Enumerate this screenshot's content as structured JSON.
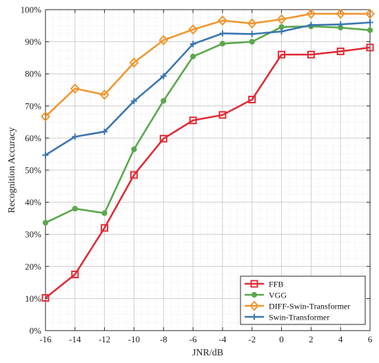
{
  "chart_data": {
    "type": "line",
    "xlabel": "JNR/dB",
    "ylabel": "Recognition Accuracy",
    "x": [
      -16,
      -14,
      -12,
      -10,
      -8,
      -6,
      -4,
      -2,
      0,
      2,
      4,
      6
    ],
    "x_tick_labels": [
      "-16",
      "-14",
      "-12",
      "-10",
      "-8",
      "-6",
      "-4",
      "-2",
      "0",
      "2",
      "4",
      "6"
    ],
    "xlim": [
      -16,
      6
    ],
    "ylim": [
      0,
      100
    ],
    "y_ticks": [
      0,
      10,
      20,
      30,
      40,
      50,
      60,
      70,
      80,
      90,
      100
    ],
    "y_tick_labels": [
      "0%",
      "10%",
      "20%",
      "30%",
      "40%",
      "50%",
      "60%",
      "70%",
      "80%",
      "90%",
      "100%"
    ],
    "grid": true,
    "legend_position": "bottom-right",
    "series": [
      {
        "name": "FFB",
        "color": "#e02b35",
        "marker": "square",
        "values": [
          10.2,
          17.5,
          32,
          48.5,
          59.8,
          65.5,
          67.2,
          72,
          86,
          86,
          87,
          88.2
        ]
      },
      {
        "name": "VGG",
        "color": "#59a84b",
        "marker": "circle",
        "values": [
          33.6,
          38,
          36.6,
          56.5,
          71.6,
          85.4,
          89.4,
          90,
          94.6,
          94.8,
          94.4,
          93.6
        ]
      },
      {
        "name": "DIFF-Swin-Transformer",
        "color": "#f0962e",
        "marker": "diamond",
        "values": [
          66.7,
          75.4,
          73.5,
          83.5,
          90.5,
          93.8,
          96.6,
          95.7,
          97,
          98.7,
          98.7,
          98.7
        ]
      },
      {
        "name": "Swin-Transformer",
        "color": "#3b76b0",
        "marker": "plus",
        "values": [
          54.7,
          60.4,
          62,
          71.5,
          79.3,
          89.3,
          92.6,
          92.4,
          93.2,
          95.2,
          95.4,
          96
        ]
      }
    ]
  }
}
